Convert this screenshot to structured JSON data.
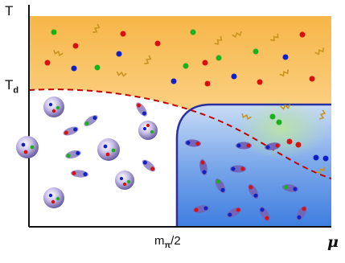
{
  "axes": {
    "y_label": "T",
    "y_tick_label": "T",
    "y_tick_sub": "d",
    "x_tick_label": "m",
    "x_tick_sub": "π",
    "x_tick_suffix": "/2",
    "x_label": "μ"
  },
  "regions": [
    {
      "name": "high-temperature-region",
      "color": "#f7bd4f"
    },
    {
      "name": "hadron-region",
      "color": "#ffffff"
    },
    {
      "name": "high-density-region",
      "color": "#4a86e0"
    },
    {
      "name": "overlap-region",
      "color": "#a7d7a0"
    }
  ],
  "boundaries": [
    {
      "name": "deconfinement-boundary",
      "style": "dashed",
      "color": "#c00000"
    },
    {
      "name": "density-boundary",
      "style": "solid",
      "color": "#2b2fa0"
    }
  ],
  "colors": {
    "quark_red": "#d81010",
    "quark_green": "#19b21a",
    "quark_blue": "#1020c8",
    "gluon": "#c8931e",
    "hadron": "#9b8fc8",
    "axis": "#111111"
  }
}
